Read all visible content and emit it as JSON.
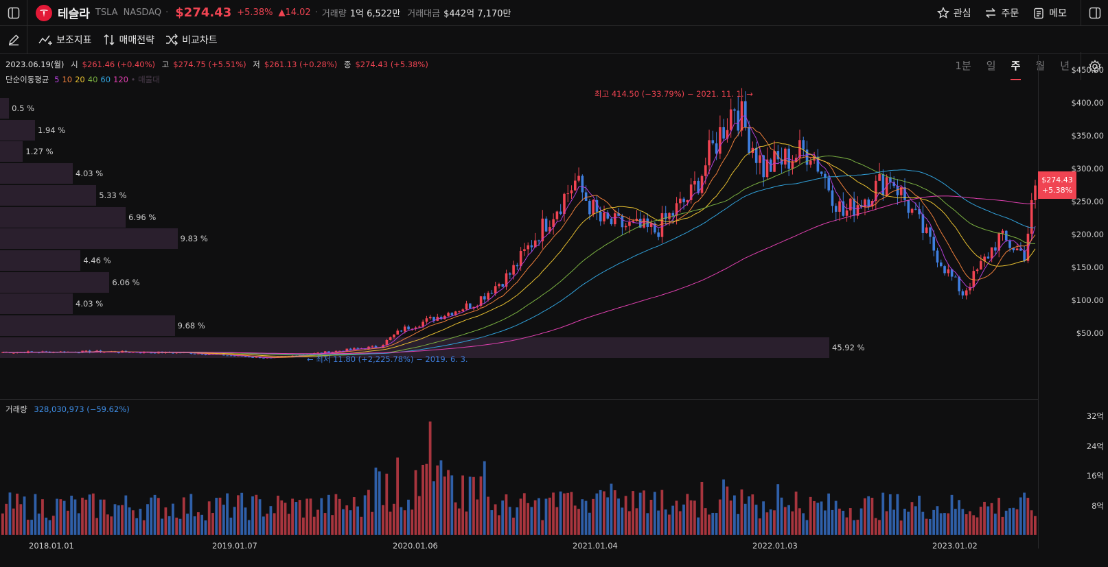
{
  "header": {
    "company": "테슬라",
    "ticker": "TSLA",
    "exchange": "NASDAQ",
    "price": "$274.43",
    "change_pct": "+5.38%",
    "change_amt": "▲14.02",
    "volume_label": "거래량",
    "volume_value": "1억 6,522만",
    "turnover_label": "거래대금",
    "turnover_value": "$442억 7,170만",
    "buttons": {
      "watch": "관심",
      "order": "주문",
      "memo": "메모"
    }
  },
  "toolbar": {
    "indicators": "보조지표",
    "strategy": "매매전략",
    "compare": "비교차트"
  },
  "periods": [
    {
      "label": "1분"
    },
    {
      "label": "일"
    },
    {
      "label": "주",
      "active": true
    },
    {
      "label": "월"
    },
    {
      "label": "년"
    }
  ],
  "ohlc": {
    "date": "2023.06.19(월)",
    "o_label": "시",
    "o": "$261.46 (+0.40%)",
    "h_label": "고",
    "h": "$274.75 (+5.51%)",
    "l_label": "저",
    "l": "$261.13 (+0.28%)",
    "c_label": "종",
    "c": "$274.43 (+5.38%)"
  },
  "ma": {
    "label": "단순이동평균",
    "periods": [
      {
        "p": "5",
        "color": "#b03fd6"
      },
      {
        "p": "10",
        "color": "#f0803c"
      },
      {
        "p": "20",
        "color": "#e8c030"
      },
      {
        "p": "40",
        "color": "#7cb342"
      },
      {
        "p": "60",
        "color": "#31a2dc"
      },
      {
        "p": "120",
        "color": "#e040b0"
      }
    ],
    "extra": "• 매물대"
  },
  "annotations": {
    "high": "최고 414.50 (−33.79%) − 2021. 11. 1. →",
    "low": "← 최저 11.80 (+2,225.78%) − 2019. 6. 3."
  },
  "volume_profile": [
    {
      "pct": "0.5 %",
      "v": 0.5
    },
    {
      "pct": "1.94 %",
      "v": 1.94
    },
    {
      "pct": "1.27 %",
      "v": 1.27
    },
    {
      "pct": "4.03 %",
      "v": 4.03
    },
    {
      "pct": "5.33 %",
      "v": 5.33
    },
    {
      "pct": "6.96 %",
      "v": 6.96
    },
    {
      "pct": "9.83 %",
      "v": 9.83
    },
    {
      "pct": "4.46 %",
      "v": 4.46
    },
    {
      "pct": "6.06 %",
      "v": 6.06
    },
    {
      "pct": "4.03 %",
      "v": 4.03
    },
    {
      "pct": "9.68 %",
      "v": 9.68
    },
    {
      "pct": "45.92 %",
      "v": 45.92
    }
  ],
  "y_axis": [
    "$450.00",
    "$400.00",
    "$350.00",
    "$300.00",
    "$250.00",
    "$200.00",
    "$150.00",
    "$100.00",
    "$50.00"
  ],
  "current_tag": {
    "price": "$274.43",
    "pct": "+5.38%"
  },
  "volume": {
    "label": "거래량",
    "value": "328,030,973 (−59.62%)",
    "axis": [
      "32억",
      "24억",
      "16억",
      "8억"
    ]
  },
  "x_axis": [
    "2018.01.01",
    "2019.01.07",
    "2020.01.06",
    "2021.01.04",
    "2022.01.03",
    "2023.01.02"
  ],
  "chart_data": {
    "type": "candlestick",
    "x": [
      "2018-01",
      "2018-07",
      "2019-01",
      "2019-06",
      "2020-01",
      "2020-02",
      "2020-07",
      "2020-09",
      "2020-12",
      "2021-01",
      "2021-03",
      "2021-06",
      "2021-09",
      "2021-11",
      "2022-01",
      "2022-04",
      "2022-06",
      "2022-09",
      "2022-12",
      "2023-01",
      "2023-03",
      "2023-05",
      "2023-06"
    ],
    "close": [
      21,
      22,
      20,
      12,
      30,
      55,
      95,
      140,
      235,
      280,
      220,
      205,
      260,
      400,
      300,
      330,
      230,
      290,
      150,
      110,
      195,
      170,
      274.43
    ],
    "high_label": 414.5,
    "low_label": 11.8,
    "ylim": [
      0,
      480
    ]
  }
}
